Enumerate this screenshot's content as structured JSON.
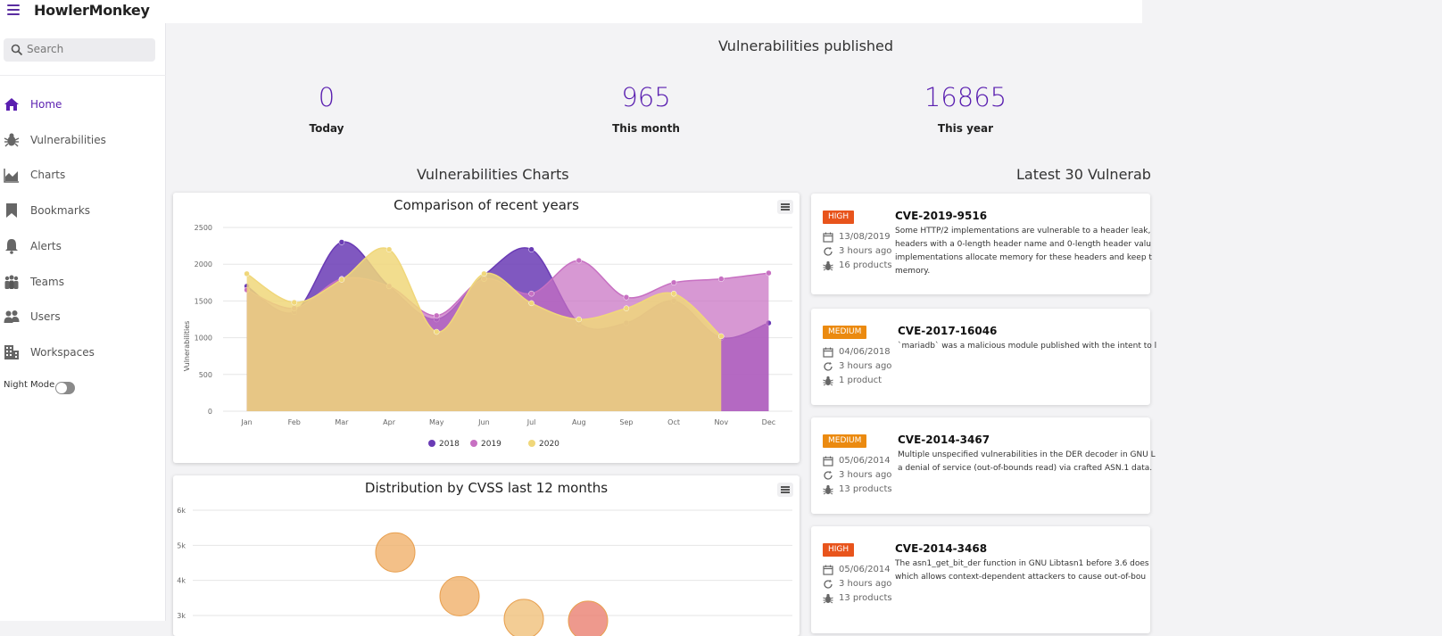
{
  "app": {
    "title": "HowlerMonkey"
  },
  "search": {
    "placeholder": "Search"
  },
  "sidebar": {
    "items": [
      {
        "label": "Home",
        "icon": "home-icon",
        "active": true
      },
      {
        "label": "Vulnerabilities",
        "icon": "bug-icon"
      },
      {
        "label": "Charts",
        "icon": "area-chart-icon"
      },
      {
        "label": "Bookmarks",
        "icon": "bookmark-icon"
      },
      {
        "label": "Alerts",
        "icon": "bell-icon"
      },
      {
        "label": "Teams",
        "icon": "team-icon"
      },
      {
        "label": "Users",
        "icon": "users-icon"
      },
      {
        "label": "Workspaces",
        "icon": "building-icon"
      }
    ],
    "night_mode_label": "Night Mode",
    "night_mode_on": false
  },
  "stats": {
    "title": "Vulnerabilities published",
    "items": [
      {
        "value": "0",
        "label": "Today"
      },
      {
        "value": "965",
        "label": "This month"
      },
      {
        "value": "16865",
        "label": "This year"
      }
    ]
  },
  "charts_section_title": "Vulnerabilities Charts",
  "latest_section_title": "Latest 30 Vulnerab",
  "colors": {
    "accent": "#5a1fb0",
    "high": "#e8541c",
    "medium": "#eb8a10",
    "s2018": "#6a3bb5",
    "s2019": "#c770c2",
    "s2020": "#f0d77a"
  },
  "chart_data": [
    {
      "type": "area",
      "title": "Comparison of recent years",
      "ylabel": "Vulnerabilities",
      "xlabel": "",
      "categories": [
        "Jan",
        "Feb",
        "Mar",
        "Apr",
        "May",
        "Jun",
        "Jul",
        "Aug",
        "Sep",
        "Oct",
        "Nov",
        "Dec"
      ],
      "ylim": [
        0,
        2500
      ],
      "yticks": [
        "0",
        "500",
        "1000",
        "1500",
        "2000",
        "2500"
      ],
      "grid": true,
      "legend": "bottom",
      "series": [
        {
          "name": "2018",
          "values": [
            1700,
            1350,
            2300,
            1700,
            1250,
            1850,
            2200,
            1200,
            1200,
            1500,
            1000,
            1200
          ]
        },
        {
          "name": "2019",
          "values": [
            1650,
            1400,
            1800,
            1700,
            1300,
            1800,
            1600,
            2050,
            1550,
            1750,
            1800,
            1880
          ]
        },
        {
          "name": "2020",
          "values": [
            1870,
            1480,
            1790,
            2200,
            1080,
            1870,
            1470,
            1250,
            1400,
            1600,
            1020,
            null
          ]
        }
      ]
    },
    {
      "type": "scatter",
      "title": "Distribution by CVSS last 12 months",
      "xlabel": "",
      "ylabel": "",
      "yticks": [
        "3k",
        "4k",
        "5k",
        "6k"
      ],
      "ylim": [
        2800,
        6200
      ],
      "grid": true,
      "points": [
        {
          "x": 1,
          "y": 4800,
          "color": "#f0b06a"
        },
        {
          "x": 2,
          "y": 3550,
          "color": "#f0b06a"
        },
        {
          "x": 3,
          "y": 2900,
          "color": "#f0c07a"
        },
        {
          "x": 4,
          "y": 2850,
          "color": "#ea8070"
        }
      ]
    }
  ],
  "vulns": [
    {
      "severity": "HIGH",
      "id": "CVE-2019-9516",
      "date": "13/08/2019",
      "updated": "3 hours ago",
      "products": "16 products",
      "desc": [
        "Some HTTP/2 implementations are vulnerable to a header leak,",
        "headers with a 0-length header name and 0-length header valu",
        "implementations allocate memory for these headers and keep t",
        "memory."
      ]
    },
    {
      "severity": "MEDIUM",
      "id": "CVE-2017-16046",
      "date": "04/06/2018",
      "updated": "3 hours ago",
      "products": "1 product",
      "desc": [
        "`mariadb` was a malicious module published with the intent to l"
      ]
    },
    {
      "severity": "MEDIUM",
      "id": "CVE-2014-3467",
      "date": "05/06/2014",
      "updated": "3 hours ago",
      "products": "13 products",
      "desc": [
        "Multiple unspecified vulnerabilities in the DER decoder in GNU L",
        "a denial of service (out-of-bounds read) via crafted ASN.1 data."
      ]
    },
    {
      "severity": "HIGH",
      "id": "CVE-2014-3468",
      "date": "05/06/2014",
      "updated": "3 hours ago",
      "products": "13 products",
      "desc": [
        "The asn1_get_bit_der function in GNU Libtasn1 before 3.6 does",
        "which allows context-dependent attackers to cause out-of-bou"
      ]
    }
  ]
}
